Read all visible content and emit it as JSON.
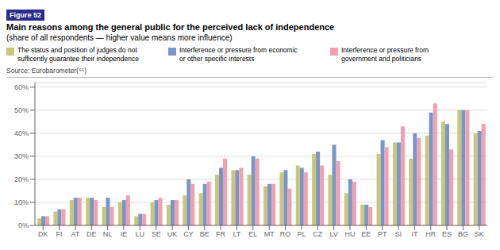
{
  "chart_data": {
    "type": "bar",
    "title": "Main reasons among the general public for the perceived lack of independence",
    "subtitle": "(share of all respondents — higher value means more influence)",
    "annotations": [
      "Figure 52",
      "Source: Eurobarometer(⁶⁶)"
    ],
    "categories": [
      "DK",
      "FI",
      "AT",
      "DE",
      "NL",
      "IE",
      "LU",
      "SE",
      "UK",
      "CY",
      "BE",
      "FR",
      "LT",
      "EL",
      "MT",
      "RO",
      "PL",
      "CZ",
      "LV",
      "HU",
      "EE",
      "PT",
      "SI",
      "IT",
      "HR",
      "ES",
      "BG",
      "SK"
    ],
    "series": [
      {
        "name": "The status and position of judges do not\nsufficently guarantee their independence",
        "color": "#c8c87a",
        "values": [
          0.03,
          0.06,
          0.11,
          0.12,
          0.08,
          0.1,
          0.04,
          0.1,
          0.09,
          0.13,
          0.14,
          0.22,
          0.24,
          0.22,
          0.17,
          0.23,
          0.26,
          0.31,
          0.22,
          0.14,
          0.09,
          0.31,
          0.36,
          0.29,
          0.39,
          0.45,
          0.5,
          0.4
        ]
      },
      {
        "name": "Interference or pressure from economic\nor other specific interests",
        "color": "#7a96c8",
        "values": [
          0.04,
          0.07,
          0.12,
          0.12,
          0.12,
          0.11,
          0.05,
          0.11,
          0.11,
          0.2,
          0.18,
          0.25,
          0.24,
          0.3,
          0.18,
          0.24,
          0.25,
          0.32,
          0.35,
          0.2,
          0.09,
          0.37,
          0.36,
          0.4,
          0.49,
          0.44,
          0.5,
          0.41
        ]
      },
      {
        "name": "Interference or pressure from\ngovernment and politicians",
        "color": "#f0a0b0",
        "values": [
          0.04,
          0.07,
          0.12,
          0.11,
          0.08,
          0.13,
          0.05,
          0.12,
          0.11,
          0.18,
          0.19,
          0.29,
          0.25,
          0.29,
          0.18,
          0.16,
          0.23,
          0.26,
          0.28,
          0.19,
          0.08,
          0.34,
          0.43,
          0.38,
          0.53,
          0.33,
          0.5,
          0.44
        ]
      }
    ],
    "ylim": [
      0,
      0.62
    ],
    "yticks": [
      {
        "value": 0.0,
        "label": "0%"
      },
      {
        "value": 0.1,
        "label": "10%"
      },
      {
        "value": 0.2,
        "label": "20%"
      },
      {
        "value": 0.3,
        "label": "30%"
      },
      {
        "value": 0.4,
        "label": "40%"
      },
      {
        "value": 0.5,
        "label": "50%"
      },
      {
        "value": 0.6,
        "label": "60%"
      }
    ],
    "grid": true,
    "legend": "top"
  }
}
